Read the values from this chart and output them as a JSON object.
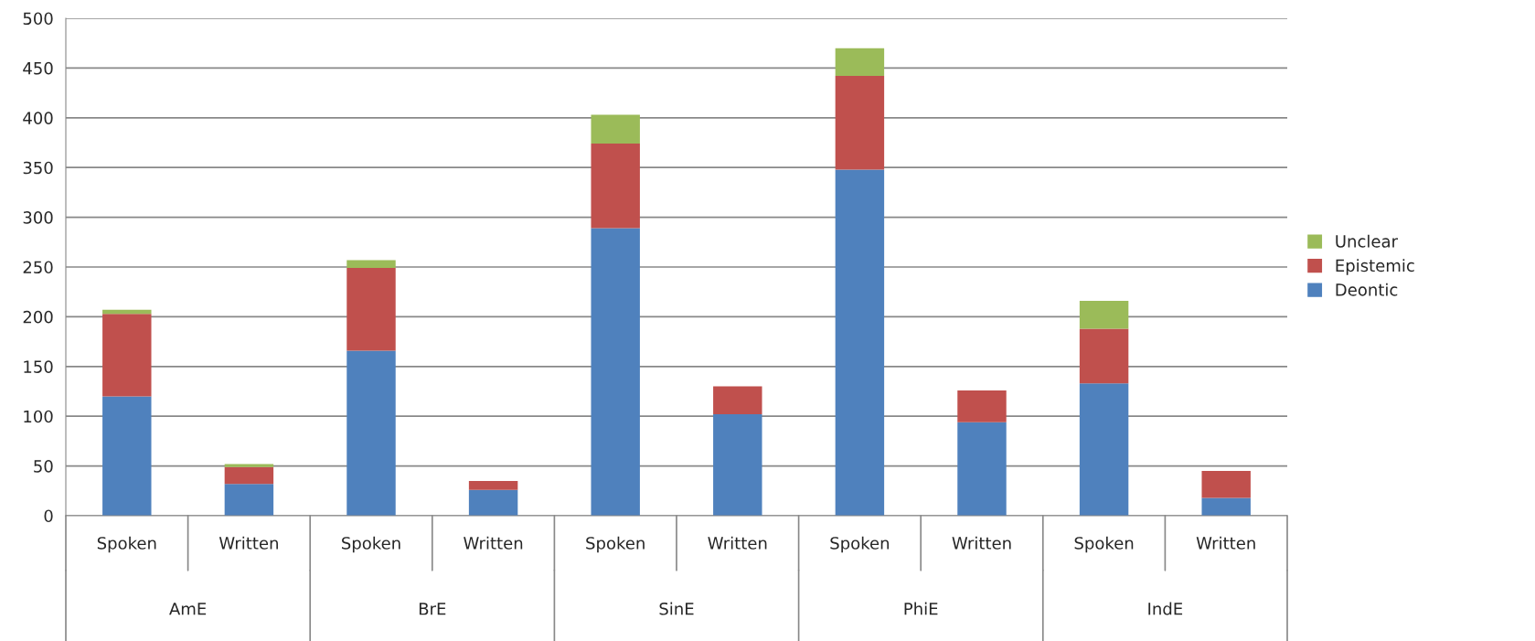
{
  "chart_data": {
    "type": "bar",
    "stacked": true,
    "categories": [
      "Spoken",
      "Written",
      "Spoken",
      "Written",
      "Spoken",
      "Written",
      "Spoken",
      "Written",
      "Spoken",
      "Written"
    ],
    "series": [
      {
        "name": "Deontic",
        "color": "#4f81bd",
        "values": [
          120,
          32,
          166,
          26,
          289,
          102,
          348,
          94,
          133,
          18
        ]
      },
      {
        "name": "Epistemic",
        "color": "#c0504d",
        "values": [
          83,
          17,
          83,
          9,
          85,
          28,
          94,
          32,
          55,
          27
        ]
      },
      {
        "name": "Unclear",
        "color": "#9bbb59",
        "values": [
          4,
          3,
          8,
          null,
          29,
          null,
          28,
          null,
          28,
          null
        ]
      }
    ],
    "annotations": [
      "AmE",
      "BrE",
      "SinE",
      "PhiE",
      "IndE"
    ],
    "ylim": [
      0,
      500
    ],
    "yticks": [
      0,
      50,
      100,
      150,
      200,
      250,
      300,
      350,
      400,
      450,
      500
    ],
    "grid": "y",
    "legend": "right"
  }
}
